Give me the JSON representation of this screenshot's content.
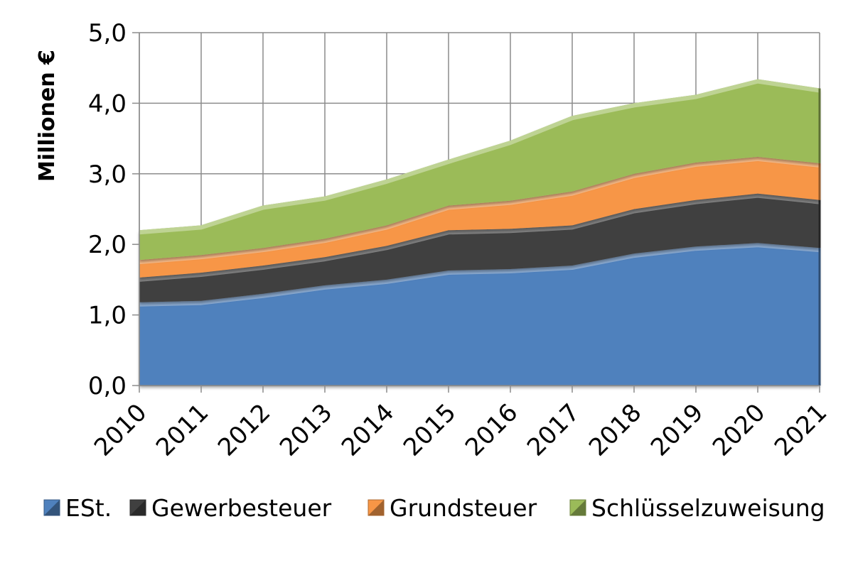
{
  "chart_data": {
    "type": "area",
    "stacked": true,
    "title": "",
    "xlabel": "",
    "ylabel": "Millionen €",
    "x": [
      "2010",
      "2011",
      "2012",
      "2013",
      "2014",
      "2015",
      "2016",
      "2017",
      "2018",
      "2019",
      "2020",
      "2021"
    ],
    "ylim": [
      0,
      5
    ],
    "yticks": [
      "0,0",
      "1,0",
      "2,0",
      "3,0",
      "4,0",
      "5,0"
    ],
    "grid": true,
    "legend_position": "bottom",
    "series": [
      {
        "name": "ESt.",
        "color": "#4f81bd",
        "values": [
          1.18,
          1.2,
          1.3,
          1.42,
          1.5,
          1.63,
          1.65,
          1.7,
          1.87,
          1.97,
          2.02,
          1.95
        ]
      },
      {
        "name": "Gewerbesteuer",
        "color": "#404040",
        "values": [
          0.35,
          0.4,
          0.4,
          0.4,
          0.48,
          0.57,
          0.57,
          0.57,
          0.63,
          0.66,
          0.7,
          0.68
        ]
      },
      {
        "name": "Grundsteuer",
        "color": "#f79646",
        "values": [
          0.25,
          0.25,
          0.25,
          0.26,
          0.29,
          0.35,
          0.4,
          0.48,
          0.5,
          0.53,
          0.52,
          0.52
        ]
      },
      {
        "name": "Schlüsselzuweisung",
        "color": "#9bbb59",
        "values": [
          0.42,
          0.42,
          0.6,
          0.6,
          0.65,
          0.65,
          0.85,
          1.07,
          1.0,
          0.96,
          1.1,
          1.06
        ]
      }
    ]
  }
}
